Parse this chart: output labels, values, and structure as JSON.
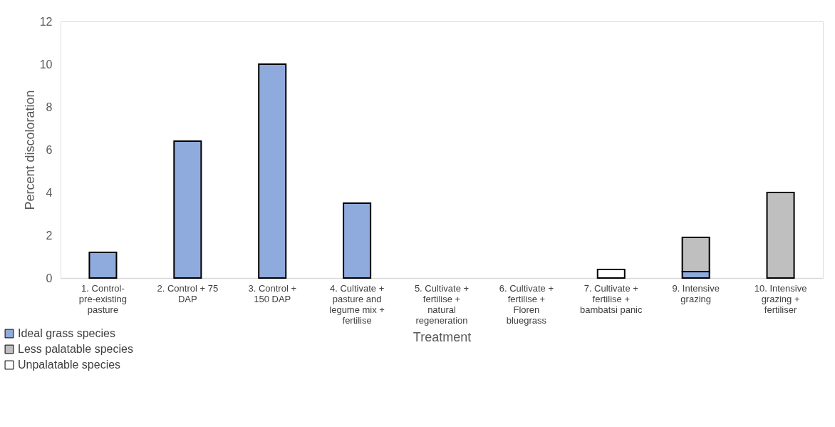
{
  "chart_data": {
    "type": "bar",
    "stacked": true,
    "xlabel": "Treatment",
    "ylabel": "Percent discoloration",
    "categories": [
      "1. Control- pre-existing pasture",
      "2. Control + 75 DAP",
      "3. Control + 150 DAP",
      "4. Cultivate + pasture and legume mix + fertilise",
      "5. Cultivate + fertilise + natural regeneration",
      "6. Cultivate + fertilise + Floren bluegrass",
      "7. Cultivate + fertilise + bambatsi panic",
      "9. Intensive grazing",
      "10. Intensive grazing + fertiliser"
    ],
    "series": [
      {
        "name": "Ideal grass species",
        "color": "#8faadc",
        "values": [
          1.2,
          6.4,
          10,
          3.5,
          null,
          null,
          null,
          0.3,
          null
        ]
      },
      {
        "name": "Less palatable species",
        "color": "#bfbfbf",
        "values": [
          null,
          null,
          null,
          null,
          null,
          null,
          null,
          1.6,
          4.0
        ]
      },
      {
        "name": "Unpalatable species",
        "color": "#ffffff",
        "values": [
          null,
          null,
          null,
          null,
          null,
          null,
          0.4,
          null,
          null
        ]
      }
    ],
    "ylim": [
      0,
      12
    ],
    "yticks": [
      0,
      2,
      4,
      6,
      8,
      10,
      12
    ],
    "grid": false,
    "legend": "bottom left"
  }
}
